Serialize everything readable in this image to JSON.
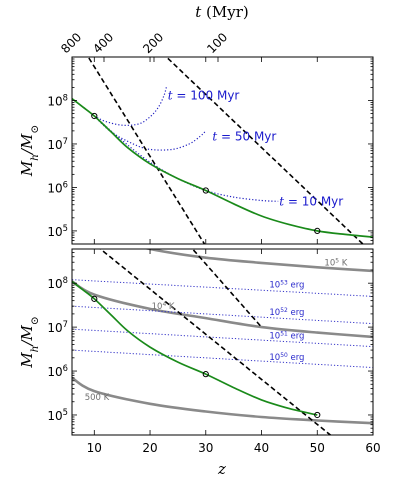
{
  "chart_data": {
    "type": "line",
    "shared_x": {
      "xlabel": "z",
      "xlim": [
        6,
        60
      ],
      "xticks": [
        "10",
        "20",
        "30",
        "40",
        "50",
        "60"
      ]
    },
    "top_axis": {
      "label": "t (Myr)",
      "ticks": [
        "800",
        "400",
        "200",
        "100"
      ]
    },
    "panels": [
      {
        "name": "top",
        "ylabel": "M_h/M_⊙",
        "yscale": "log",
        "ylim": [
          50000.0,
          1000000000.0
        ],
        "yticks": [
          100000.0,
          1000000.0,
          10000000.0,
          100000000.0
        ],
        "ytick_labels": [
          "10^5",
          "10^6",
          "10^7",
          "10^8"
        ],
        "green_curve": {
          "x": [
            6,
            8,
            10,
            13,
            16,
            20,
            25,
            30,
            35,
            40,
            45,
            50,
            55,
            60
          ],
          "y": [
            110000000.0,
            70000000.0,
            44000000.0,
            19000000.0,
            8200000.0,
            3500000.0,
            1600000.0,
            850000.0,
            420000.0,
            220000.0,
            140000.0,
            100000.0,
            83000.0,
            72000.0
          ]
        },
        "dashed_lines": [
          {
            "x": [
              6,
              38
            ],
            "y": [
              4000000000.0,
              1000.0
            ]
          },
          {
            "x": [
              18,
              60
            ],
            "y": [
              4000000000.0,
              30000.0
            ]
          }
        ],
        "dotted_curves": [
          {
            "label": "t = 100 Myr",
            "x": [
              10,
              12,
              15,
              18,
              20,
              21.5,
              22.5,
              23
            ],
            "y": [
              44000000.0,
              33000000.0,
              27000000.0,
              29000000.0,
              42000000.0,
              70000000.0,
              130000000.0,
              220000000.0
            ]
          },
          {
            "label": "t = 50 Myr",
            "x": [
              10,
              13,
              17,
              20,
              24,
              27,
              29,
              30
            ],
            "y": [
              44000000.0,
              19000000.0,
              10000000.0,
              7500000.0,
              7500000.0,
              10000000.0,
              15000000.0,
              20000000.0
            ]
          },
          {
            "label": "t = 10 Myr",
            "x": [
              10,
              15,
              20,
              25,
              30,
              35,
              40,
              43
            ],
            "y": [
              44000000.0,
              12000000.0,
              3800000.0,
              1600000.0,
              850000.0,
              600000.0,
              500000.0,
              480000.0
            ]
          }
        ],
        "markers": [
          {
            "x": 10,
            "y": 44000000.0
          },
          {
            "x": 30,
            "y": 850000.0
          },
          {
            "x": 50,
            "y": 100000.0
          }
        ],
        "annotations": [
          {
            "pre": "t",
            "text": " = 100 Myr",
            "x": 23,
            "y": 130000000.0
          },
          {
            "pre": "t",
            "text": " = 50 Myr",
            "x": 31,
            "y": 15000000.0
          },
          {
            "pre": "t",
            "text": " = 10 Myr",
            "x": 43,
            "y": 480000.0
          }
        ]
      },
      {
        "name": "bottom",
        "ylabel": "M_h/M_⊙",
        "yscale": "log",
        "ylim": [
          35000.0,
          600000000.0
        ],
        "yticks": [
          100000.0,
          1000000.0,
          10000000.0,
          100000000.0
        ],
        "ytick_labels": [
          "10^5",
          "10^6",
          "10^7",
          "10^8"
        ],
        "green_curve": {
          "x": [
            6,
            8,
            10,
            13,
            16,
            20,
            25,
            30,
            35,
            40,
            45,
            50
          ],
          "y": [
            110000000.0,
            70000000.0,
            44000000.0,
            19000000.0,
            8200000.0,
            3500000.0,
            1600000.0,
            850000.0,
            420000.0,
            220000.0,
            140000.0,
            100000.0
          ]
        },
        "dashed_lines": [
          {
            "x": [
              6,
              53
            ],
            "y": [
              2000000000.0,
              30000.0
            ]
          },
          {
            "x": [
              24,
              40
            ],
            "y": [
              2000000000.0,
              10000000.0
            ]
          }
        ],
        "gray_curves": [
          {
            "label": "10^5 K",
            "x": [
              6,
              10,
              20,
              30,
              40,
              50,
              60
            ],
            "y": [
              2400000000.0,
              1200000000.0,
              600000000.0,
              380000000.0,
              290000000.0,
              230000000.0,
              190000000.0
            ]
          },
          {
            "label": "10^4 K",
            "x": [
              6,
              10,
              20,
              30,
              40,
              50,
              60
            ],
            "y": [
              110000000.0,
              55000000.0,
              26000000.0,
              16000000.0,
              10000000.0,
              7500000.0,
              6000000.0
            ]
          },
          {
            "label": "500 K",
            "x": [
              6,
              10,
              20,
              30,
              40,
              50,
              60
            ],
            "y": [
              700000.0,
              350000.0,
              180000.0,
              120000.0,
              90000.0,
              75000.0,
              65000.0
            ]
          }
        ],
        "blue_dotted_lines": [
          {
            "label": "10^53 erg",
            "x": [
              6,
              60
            ],
            "y": [
              120000000.0,
              50000000.0
            ]
          },
          {
            "label": "10^52 erg",
            "x": [
              6,
              60
            ],
            "y": [
              30000000.0,
              12000000.0
            ]
          },
          {
            "label": "10^51 erg",
            "x": [
              6,
              60
            ],
            "y": [
              9000000.0,
              3600000.0
            ]
          },
          {
            "label": "10^50 erg",
            "x": [
              6,
              60
            ],
            "y": [
              3000000.0,
              1200000.0
            ]
          }
        ],
        "markers": [
          {
            "x": 10,
            "y": 44000000.0
          },
          {
            "x": 30,
            "y": 850000.0
          },
          {
            "x": 50,
            "y": 100000.0
          }
        ],
        "annotations": [
          {
            "base": "10",
            "sup": "5",
            "text": " K",
            "x": 52,
            "y": 250000000.0,
            "color": "gray"
          },
          {
            "base": "10",
            "sup": "4",
            "text": " K",
            "x": 21,
            "y": 26000000.0,
            "color": "gray"
          },
          {
            "base": "",
            "sup": "",
            "text": "500 K",
            "x": 9,
            "y": 220000.0,
            "color": "gray"
          },
          {
            "base": "10",
            "sup": "53",
            "text": " erg",
            "x": 45,
            "y": 80000000.0,
            "color": "blue"
          },
          {
            "base": "10",
            "sup": "52",
            "text": " erg",
            "x": 45,
            "y": 19000000.0,
            "color": "blue"
          },
          {
            "base": "10",
            "sup": "51",
            "text": " erg",
            "x": 45,
            "y": 5500000.0,
            "color": "blue"
          },
          {
            "base": "10",
            "sup": "50",
            "text": " erg",
            "x": 45,
            "y": 1800000.0,
            "color": "blue"
          }
        ]
      }
    ]
  }
}
